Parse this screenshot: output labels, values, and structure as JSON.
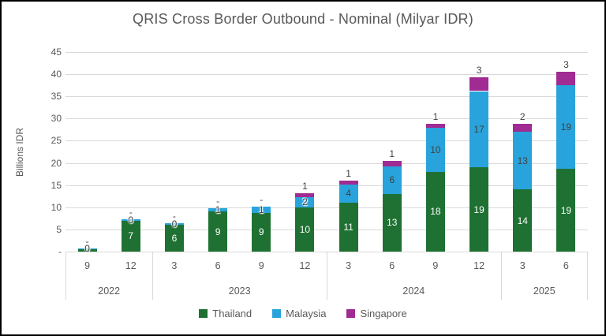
{
  "chart_data": {
    "type": "bar",
    "stacked": true,
    "title": "QRIS Cross Border Outbound - Nominal (Milyar IDR)",
    "ylabel": "Billions IDR",
    "xlabel": "",
    "ylim": [
      0,
      45
    ],
    "ytick_step": 5,
    "ytick_labels": [
      "-",
      "5",
      "10",
      "15",
      "20",
      "25",
      "30",
      "35",
      "40",
      "45"
    ],
    "grid": true,
    "legend_position": "bottom",
    "series": [
      {
        "name": "Thailand",
        "color": "#1E7132"
      },
      {
        "name": "Malaysia",
        "color": "#29A3DC"
      },
      {
        "name": "Singapore",
        "color": "#A02B93"
      }
    ],
    "year_groups": [
      {
        "label": "2022",
        "span": 2
      },
      {
        "label": "2023",
        "span": 4
      },
      {
        "label": "2024",
        "span": 4
      },
      {
        "label": "2025",
        "span": 2
      }
    ],
    "points": [
      {
        "year": "2022",
        "month": "9",
        "thailand": 0.6,
        "malaysia": 0.15,
        "singapore": 0,
        "labels": {
          "thailand": "",
          "malaysia": "0",
          "singapore": "-"
        }
      },
      {
        "year": "2022",
        "month": "12",
        "thailand": 7,
        "malaysia": 0.3,
        "singapore": 0,
        "labels": {
          "thailand": "7",
          "malaysia": "0",
          "singapore": "-"
        }
      },
      {
        "year": "2023",
        "month": "3",
        "thailand": 6,
        "malaysia": 0.4,
        "singapore": 0,
        "labels": {
          "thailand": "6",
          "malaysia": "0",
          "singapore": "-"
        }
      },
      {
        "year": "2023",
        "month": "6",
        "thailand": 9,
        "malaysia": 0.8,
        "singapore": 0,
        "labels": {
          "thailand": "9",
          "malaysia": "1",
          "singapore": "-"
        }
      },
      {
        "year": "2023",
        "month": "9",
        "thailand": 8.8,
        "malaysia": 1.3,
        "singapore": 0,
        "labels": {
          "thailand": "9",
          "malaysia": "1",
          "singapore": "-"
        }
      },
      {
        "year": "2023",
        "month": "12",
        "thailand": 10,
        "malaysia": 2.3,
        "singapore": 0.9,
        "labels": {
          "thailand": "10",
          "malaysia": "2",
          "singapore": "1"
        }
      },
      {
        "year": "2024",
        "month": "3",
        "thailand": 11,
        "malaysia": 4.2,
        "singapore": 0.8,
        "labels": {
          "thailand": "11",
          "malaysia": "4",
          "singapore": "1"
        }
      },
      {
        "year": "2024",
        "month": "6",
        "thailand": 13,
        "malaysia": 6.3,
        "singapore": 1.2,
        "labels": {
          "thailand": "13",
          "malaysia": "6",
          "singapore": "1"
        }
      },
      {
        "year": "2024",
        "month": "9",
        "thailand": 18,
        "malaysia": 10,
        "singapore": 0.9,
        "labels": {
          "thailand": "18",
          "malaysia": "10",
          "singapore": "1"
        }
      },
      {
        "year": "2024",
        "month": "12",
        "thailand": 19,
        "malaysia": 17.2,
        "singapore": 3.1,
        "labels": {
          "thailand": "19",
          "malaysia": "17",
          "singapore": "3"
        }
      },
      {
        "year": "2025",
        "month": "3",
        "thailand": 14,
        "malaysia": 13,
        "singapore": 1.9,
        "labels": {
          "thailand": "14",
          "malaysia": "13",
          "singapore": "2"
        }
      },
      {
        "year": "2025",
        "month": "6",
        "thailand": 18.6,
        "malaysia": 19,
        "singapore": 3,
        "labels": {
          "thailand": "19",
          "malaysia": "19",
          "singapore": "3"
        }
      }
    ]
  }
}
